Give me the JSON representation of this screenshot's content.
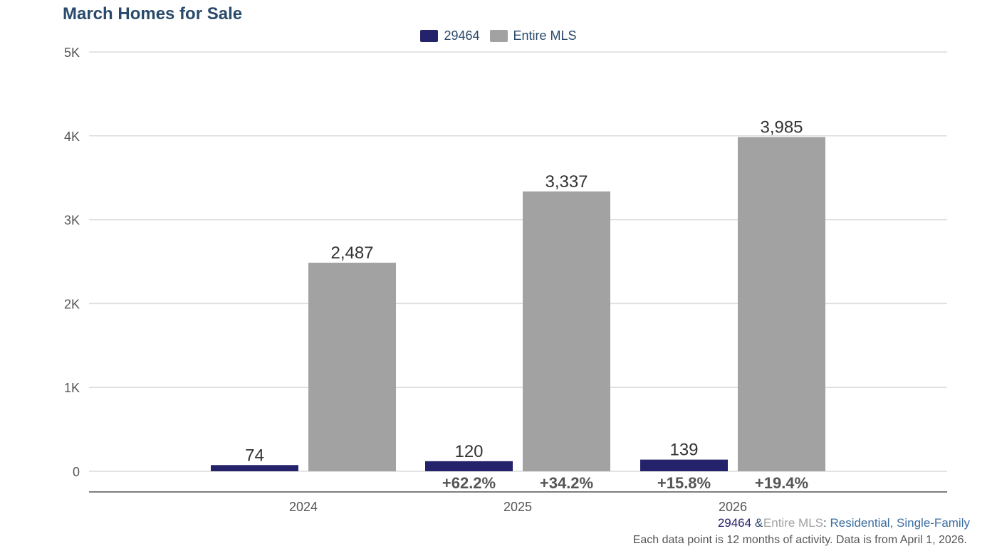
{
  "chart_data": {
    "type": "bar",
    "title": "March Homes for Sale",
    "categories": [
      "2024",
      "2025",
      "2026"
    ],
    "series": [
      {
        "name": "29464",
        "color": "#24226a",
        "values": [
          74,
          120,
          139
        ],
        "value_labels": [
          "74",
          "120",
          "139"
        ],
        "change_labels": [
          "",
          "+62.2%",
          "+15.8%"
        ]
      },
      {
        "name": "Entire MLS",
        "color": "#a2a2a2",
        "values": [
          2487,
          3337,
          3985
        ],
        "value_labels": [
          "2,487",
          "3,337",
          "3,985"
        ],
        "change_labels": [
          "",
          "+34.2%",
          "+19.4%"
        ]
      }
    ],
    "y_ticks": [
      0,
      1000,
      2000,
      3000,
      4000,
      5000
    ],
    "y_tick_labels": [
      "0",
      "1K",
      "2K",
      "3K",
      "4K",
      "5K"
    ],
    "ylim": [
      0,
      5000
    ],
    "grid": true,
    "legend_position": "top-center"
  },
  "footer": {
    "area": "29464",
    "amp": "&",
    "compare": "Entire MLS",
    "colon": ":",
    "property_type": "Residential, Single-Family",
    "note": "Each data point is 12 months of activity. Data is from April 1, 2026."
  }
}
